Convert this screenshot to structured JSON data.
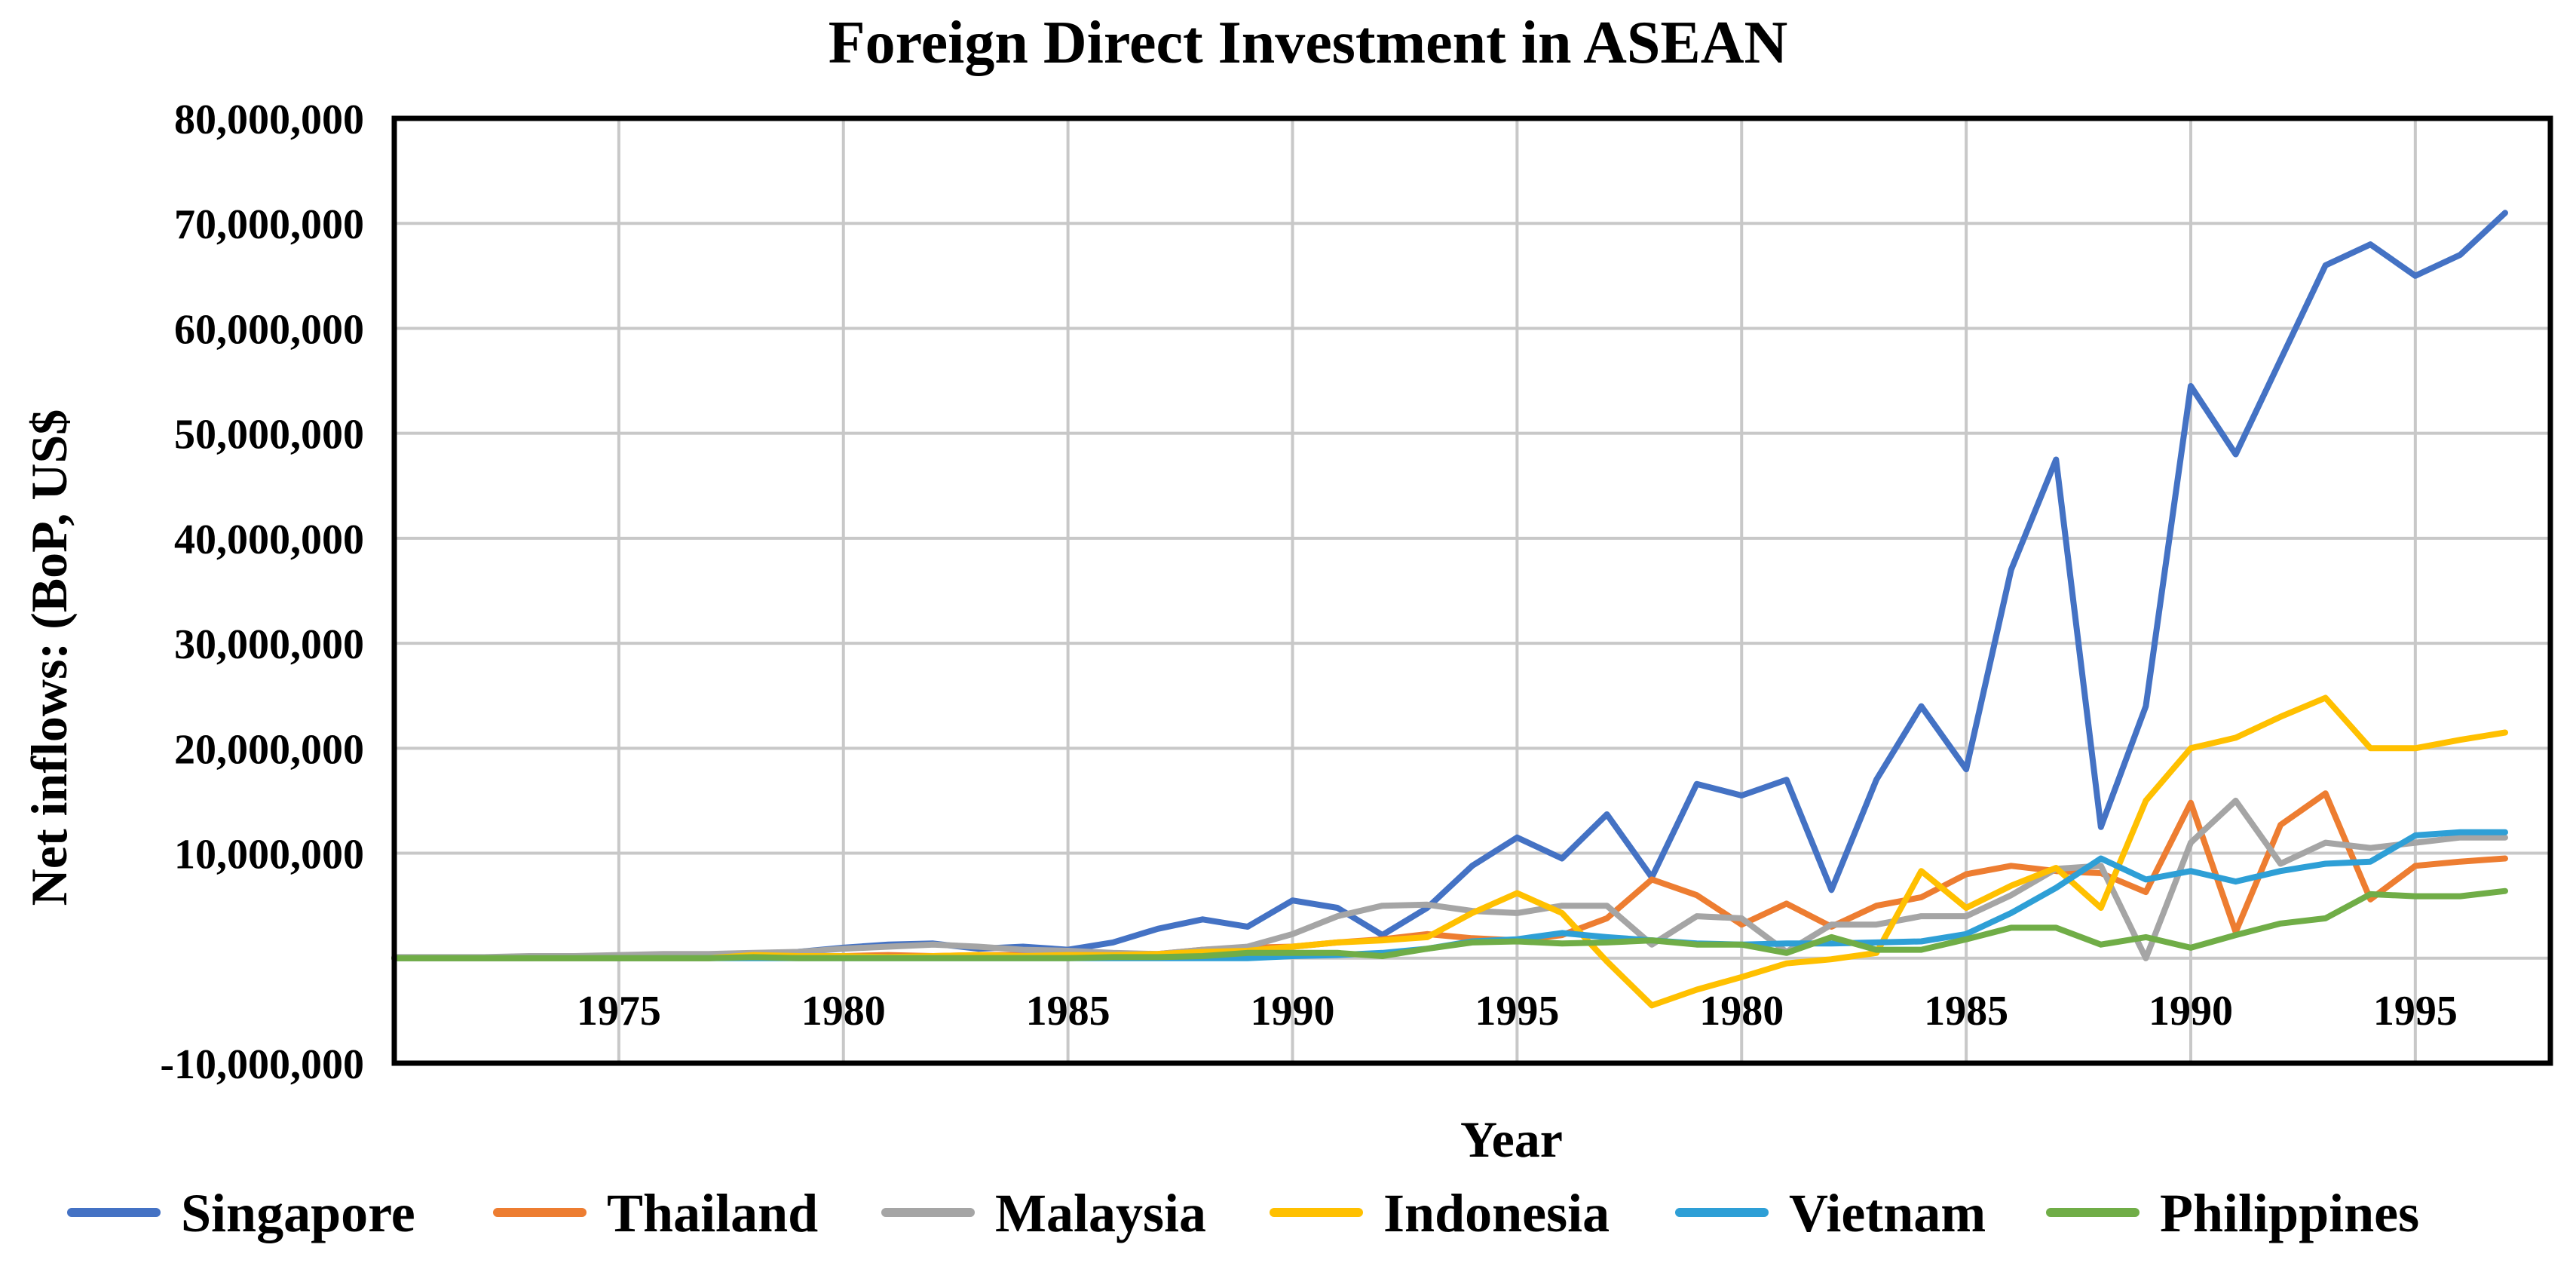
{
  "chart_data": {
    "type": "line",
    "title": "Foreign Direct Investment in ASEAN",
    "xlabel": "Year",
    "ylabel": "Net inflows: (BoP, US$",
    "ylim": [
      -10000000,
      80000000
    ],
    "yticks": [
      80000000,
      70000000,
      60000000,
      50000000,
      40000000,
      30000000,
      20000000,
      10000000,
      -10000000
    ],
    "ytick_labels": [
      "80,000,000",
      "70,000,000",
      "60,000,000",
      "50,000,000",
      "40,000,000",
      "30,000,000",
      "20,000,000",
      "10,000,000",
      "-10,000,000"
    ],
    "xtick_labels": [
      "1975",
      "1980",
      "1985",
      "1990",
      "1995",
      "1980",
      "1985",
      "1990",
      "1995"
    ],
    "xtick_positions": [
      5,
      10,
      15,
      20,
      25,
      30,
      35,
      40,
      45
    ],
    "x_range": [
      0,
      47
    ],
    "grid": true,
    "legend_position": "bottom",
    "series": [
      {
        "name": "Singapore",
        "color": "#4472C4",
        "x": [
          0,
          1,
          2,
          3,
          4,
          5,
          6,
          7,
          8,
          9,
          10,
          11,
          12,
          13,
          14,
          15,
          16,
          17,
          18,
          19,
          20,
          21,
          22,
          23,
          24,
          25,
          26,
          27,
          28,
          29,
          30,
          31,
          32,
          33,
          34,
          35,
          36,
          37,
          38,
          39,
          40,
          41,
          42,
          43,
          44,
          45,
          46,
          47
        ],
        "values": [
          0,
          0,
          0,
          0,
          100000,
          0,
          0,
          0,
          300000,
          600000,
          1000000,
          1300000,
          1400000,
          900000,
          1100000,
          800000,
          1500000,
          2800000,
          3700000,
          3000000,
          5500000,
          4800000,
          2200000,
          4800000,
          8800000,
          11500000,
          9500000,
          13700000,
          7700000,
          16600000,
          15500000,
          17000000,
          6500000,
          17000000,
          24000000,
          18000000,
          37000000,
          47500000,
          12500000,
          24000000,
          54500000,
          48000000,
          57000000,
          66000000,
          68000000,
          65000000,
          67000000,
          71000000
        ]
      },
      {
        "name": "Thailand",
        "color": "#ED7D31",
        "x": [
          0,
          1,
          2,
          3,
          4,
          5,
          6,
          7,
          8,
          9,
          10,
          11,
          12,
          13,
          14,
          15,
          16,
          17,
          18,
          19,
          20,
          21,
          22,
          23,
          24,
          25,
          26,
          27,
          28,
          29,
          30,
          31,
          32,
          33,
          34,
          35,
          36,
          37,
          38,
          39,
          40,
          41,
          42,
          43,
          44,
          45,
          46,
          47
        ],
        "values": [
          0,
          0,
          0,
          0,
          0,
          0,
          0,
          0,
          100000,
          200000,
          200000,
          300000,
          200000,
          300000,
          300000,
          200000,
          300000,
          400000,
          800000,
          1000000,
          1100000,
          1500000,
          1800000,
          2300000,
          1900000,
          1700000,
          2200000,
          3800000,
          7500000,
          6000000,
          3200000,
          5200000,
          3000000,
          5000000,
          5800000,
          8000000,
          8800000,
          8300000,
          8100000,
          6300000,
          14800000,
          2500000,
          12700000,
          15700000,
          5600000,
          8800000,
          9200000,
          9500000
        ]
      },
      {
        "name": "Malaysia",
        "color": "#A5A5A5",
        "x": [
          0,
          1,
          2,
          3,
          4,
          5,
          6,
          7,
          8,
          9,
          10,
          11,
          12,
          13,
          14,
          15,
          16,
          17,
          18,
          19,
          20,
          21,
          22,
          23,
          24,
          25,
          26,
          27,
          28,
          29,
          30,
          31,
          32,
          33,
          34,
          35,
          36,
          37,
          38,
          39,
          40,
          41,
          42,
          43,
          44,
          45,
          46,
          47
        ],
        "values": [
          100000,
          100000,
          100000,
          200000,
          200000,
          300000,
          400000,
          400000,
          500000,
          600000,
          900000,
          1100000,
          1300000,
          1100000,
          800000,
          700000,
          500000,
          400000,
          800000,
          1100000,
          2300000,
          4000000,
          5000000,
          5100000,
          4500000,
          4300000,
          5000000,
          5000000,
          1300000,
          4000000,
          3800000,
          600000,
          3200000,
          3200000,
          4000000,
          4000000,
          6000000,
          8500000,
          8800000,
          0,
          11000000,
          15000000,
          9000000,
          11000000,
          10500000,
          11000000,
          11500000,
          11500000
        ]
      },
      {
        "name": "Indonesia",
        "color": "#FFC000",
        "x": [
          0,
          1,
          2,
          3,
          4,
          5,
          6,
          7,
          8,
          9,
          10,
          11,
          12,
          13,
          14,
          15,
          16,
          17,
          18,
          19,
          20,
          21,
          22,
          23,
          24,
          25,
          26,
          27,
          28,
          29,
          30,
          31,
          32,
          33,
          34,
          35,
          36,
          37,
          38,
          39,
          40,
          41,
          42,
          43,
          44,
          45,
          46,
          47
        ],
        "values": [
          0,
          0,
          0,
          0,
          0,
          0,
          0,
          0,
          300000,
          200000,
          200000,
          100000,
          200000,
          300000,
          200000,
          300000,
          300000,
          400000,
          600000,
          700000,
          1100000,
          1500000,
          1700000,
          2000000,
          4300000,
          6200000,
          4300000,
          -300000,
          -4500000,
          -3000000,
          -1800000,
          -500000,
          -100000,
          500000,
          8300000,
          4800000,
          6900000,
          8600000,
          4800000,
          15000000,
          20000000,
          21000000,
          23000000,
          24800000,
          20000000,
          20000000,
          20800000,
          21500000
        ]
      },
      {
        "name": "Vietnam",
        "color": "#2E9FD6",
        "x": [
          0,
          1,
          2,
          3,
          4,
          5,
          6,
          7,
          8,
          9,
          10,
          11,
          12,
          13,
          14,
          15,
          16,
          17,
          18,
          19,
          20,
          21,
          22,
          23,
          24,
          25,
          26,
          27,
          28,
          29,
          30,
          31,
          32,
          33,
          34,
          35,
          36,
          37,
          38,
          39,
          40,
          41,
          42,
          43,
          44,
          45,
          46,
          47
        ],
        "values": [
          0,
          0,
          0,
          0,
          0,
          0,
          0,
          0,
          0,
          0,
          0,
          0,
          0,
          0,
          0,
          0,
          0,
          0,
          0,
          0,
          200000,
          300000,
          500000,
          900000,
          1600000,
          1800000,
          2400000,
          2000000,
          1700000,
          1400000,
          1300000,
          1400000,
          1400000,
          1500000,
          1600000,
          2300000,
          4300000,
          6700000,
          9500000,
          7500000,
          8300000,
          7300000,
          8300000,
          9000000,
          9200000,
          11700000,
          12000000,
          12000000
        ]
      },
      {
        "name": "Philippines",
        "color": "#70AD47",
        "x": [
          0,
          1,
          2,
          3,
          4,
          5,
          6,
          7,
          8,
          9,
          10,
          11,
          12,
          13,
          14,
          15,
          16,
          17,
          18,
          19,
          20,
          21,
          22,
          23,
          24,
          25,
          26,
          27,
          28,
          29,
          30,
          31,
          32,
          33,
          34,
          35,
          36,
          37,
          38,
          39,
          40,
          41,
          42,
          43,
          44,
          45,
          46,
          47
        ],
        "values": [
          0,
          0,
          0,
          0,
          0,
          0,
          0,
          0,
          100000,
          0,
          0,
          0,
          0,
          0,
          0,
          0,
          100000,
          100000,
          200000,
          500000,
          500000,
          500000,
          200000,
          900000,
          1500000,
          1600000,
          1400000,
          1500000,
          1700000,
          1300000,
          1300000,
          500000,
          2000000,
          800000,
          800000,
          1800000,
          2900000,
          2900000,
          1300000,
          2000000,
          1000000,
          2200000,
          3300000,
          3800000,
          6100000,
          5900000,
          5900000,
          6400000
        ]
      }
    ]
  }
}
